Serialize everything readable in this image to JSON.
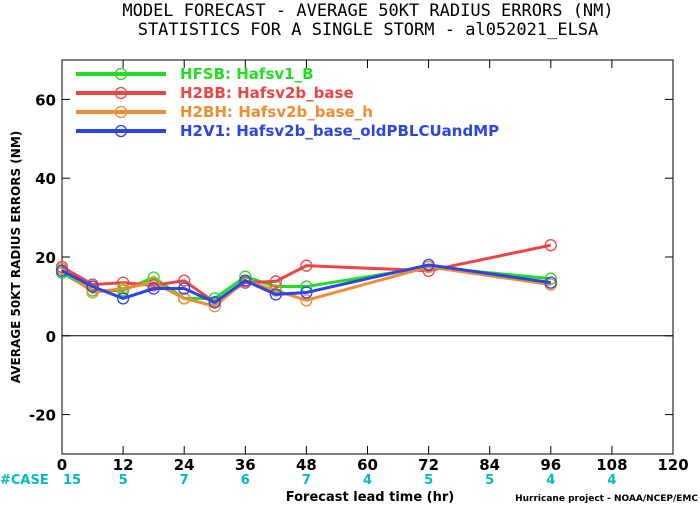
{
  "titles": {
    "line1": "MODEL FORECAST - AVERAGE 50KT RADIUS ERRORS (NM)",
    "line2": "STATISTICS FOR A SINGLE STORM - al052021_ELSA"
  },
  "credit": "Hurricane project - NOAA/NCEP/EMC",
  "case_label": "#CASE",
  "case_color": "#00bbbb",
  "chart_data": {
    "type": "line",
    "title": "MODEL FORECAST - AVERAGE 50KT RADIUS ERRORS (NM)",
    "subtitle": "STATISTICS FOR A SINGLE STORM - al052021_ELSA",
    "xlabel": "Forecast lead time (hr)",
    "ylabel": "AVERAGE 50KT RADIUS ERRORS (NM)",
    "xlim": [
      0,
      120
    ],
    "ylim": [
      -30,
      70
    ],
    "xticks": [
      0,
      12,
      24,
      36,
      48,
      60,
      72,
      84,
      96,
      108,
      120
    ],
    "yticks": [
      -20,
      0,
      20,
      40,
      60
    ],
    "grid": false,
    "zero_line": true,
    "legend_position": "top-left",
    "cases": {
      "x": [
        0,
        12,
        24,
        36,
        48,
        60,
        72,
        84,
        96,
        108
      ],
      "values": [
        "15",
        "5",
        "7",
        "6",
        "7",
        "4",
        "5",
        "5",
        "4",
        "4"
      ]
    },
    "series": [
      {
        "name": "HFSB: Hafsv1_B",
        "color": "#22dd22",
        "x": [
          0,
          6,
          12,
          18,
          24,
          30,
          36,
          42,
          48,
          72,
          96
        ],
        "y": [
          16.0,
          11.5,
          11.5,
          14.8,
          9.5,
          9.5,
          15.0,
          12.5,
          12.5,
          17.5,
          14.5
        ]
      },
      {
        "name": "H2BB: Hafsv2b_base",
        "color": "#ee4444",
        "x": [
          0,
          6,
          12,
          18,
          24,
          30,
          36,
          42,
          48,
          72,
          96
        ],
        "y": [
          17.5,
          13.0,
          13.5,
          12.8,
          14.0,
          8.5,
          13.5,
          13.8,
          17.8,
          16.5,
          23.0
        ]
      },
      {
        "name": "H2BH: Hafsv2b_base_h",
        "color": "#f08c32",
        "x": [
          0,
          6,
          12,
          18,
          24,
          30,
          36,
          42,
          48,
          72,
          96
        ],
        "y": [
          17.0,
          11.0,
          12.0,
          13.5,
          9.5,
          7.5,
          14.0,
          11.5,
          9.0,
          17.5,
          13.0
        ]
      },
      {
        "name": "H2V1: Hafsv2b_base_oldPBLCUandMP",
        "color": "#2b45e8",
        "x": [
          0,
          6,
          12,
          18,
          24,
          30,
          36,
          42,
          48,
          72,
          96
        ],
        "y": [
          16.5,
          12.5,
          9.5,
          12.0,
          12.0,
          8.5,
          14.0,
          10.5,
          11.0,
          18.0,
          13.5
        ]
      }
    ]
  }
}
